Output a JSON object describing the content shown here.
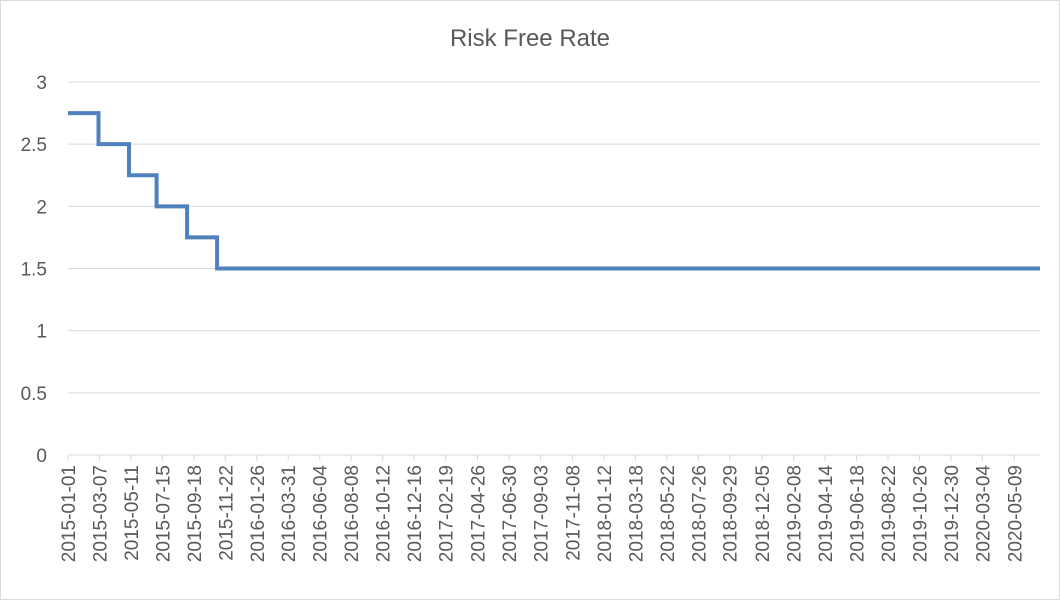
{
  "chart_data": {
    "type": "line",
    "title": "Risk Free Rate",
    "xlabel": "",
    "ylabel": "",
    "ylim": [
      0,
      3
    ],
    "yticks": [
      "0",
      "0.5",
      "1",
      "1.5",
      "2",
      "2.5",
      "3"
    ],
    "x_tick_labels": [
      "2015-01-01",
      "2015-03-07",
      "2015-05-11",
      "2015-07-15",
      "2015-09-18",
      "2015-11-22",
      "2016-01-26",
      "2016-03-31",
      "2016-06-04",
      "2016-08-08",
      "2016-10-12",
      "2016-12-16",
      "2017-02-19",
      "2017-04-26",
      "2017-06-30",
      "2017-09-03",
      "2017-11-08",
      "2018-01-12",
      "2018-03-18",
      "2018-05-22",
      "2018-07-26",
      "2018-09-29",
      "2018-12-05",
      "2019-02-08",
      "2019-04-14",
      "2019-06-18",
      "2019-08-22",
      "2019-10-26",
      "2019-12-30",
      "2020-03-04",
      "2020-05-09"
    ],
    "x_range": [
      "2015-01-01",
      "2020-07-01"
    ],
    "grid": true,
    "legend": "none",
    "series": [
      {
        "color": "#4f81bd",
        "step": true,
        "points": [
          {
            "x": "2015-01-01",
            "y": 2.75
          },
          {
            "x": "2015-03-05",
            "y": 2.5
          },
          {
            "x": "2015-05-07",
            "y": 2.25
          },
          {
            "x": "2015-07-03",
            "y": 2.0
          },
          {
            "x": "2015-09-04",
            "y": 1.75
          },
          {
            "x": "2015-11-05",
            "y": 1.5
          },
          {
            "x": "2020-07-01",
            "y": 1.5
          }
        ]
      }
    ]
  }
}
